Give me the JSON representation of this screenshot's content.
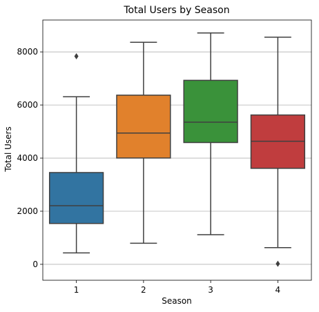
{
  "chart_data": {
    "type": "box",
    "title": "Total Users by Season",
    "xlabel": "Season",
    "ylabel": "Total Users",
    "categories": [
      "1",
      "2",
      "3",
      "4"
    ],
    "ylim": [
      -600,
      9200
    ],
    "yticks": [
      0,
      2000,
      4000,
      6000,
      8000
    ],
    "grid": "y",
    "colors": [
      "#3274a1",
      "#e1812c",
      "#3a923a",
      "#c03d3e"
    ],
    "boxes": [
      {
        "category": "1",
        "whisker_low": 431,
        "q1": 1538,
        "median": 2209,
        "q3": 3456,
        "whisker_high": 6312,
        "outliers": [
          7836
        ]
      },
      {
        "category": "2",
        "whisker_low": 795,
        "q1": 4003,
        "median": 4942,
        "q3": 6370,
        "whisker_high": 8362,
        "outliers": []
      },
      {
        "category": "3",
        "whisker_low": 1115,
        "q1": 4586,
        "median": 5354,
        "q3": 6929,
        "whisker_high": 8714,
        "outliers": []
      },
      {
        "category": "4",
        "whisker_low": 627,
        "q1": 3615,
        "median": 4634,
        "q3": 5624,
        "whisker_high": 8555,
        "outliers": [
          22
        ]
      }
    ]
  }
}
